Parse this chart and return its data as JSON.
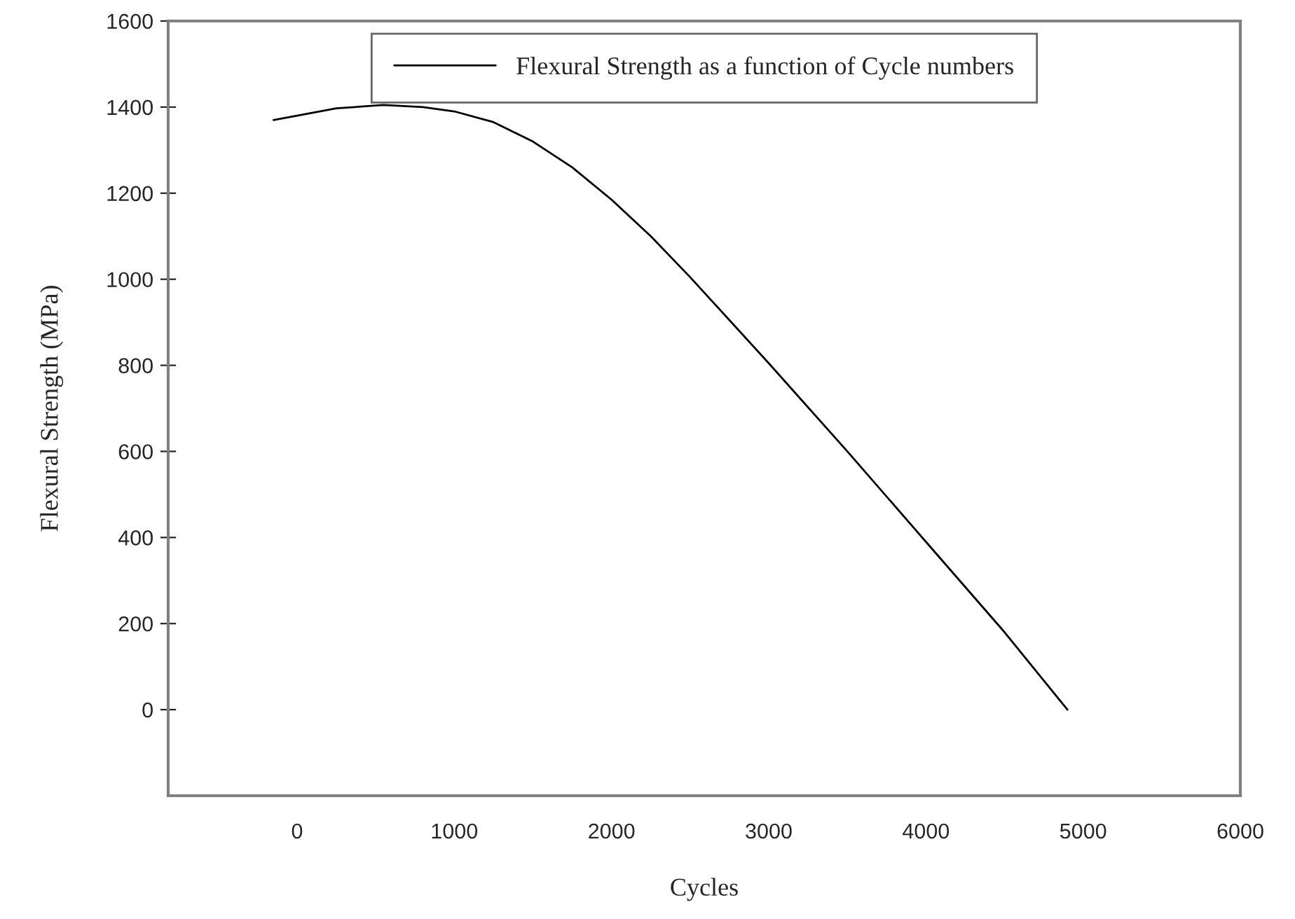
{
  "chart_data": {
    "type": "line",
    "xlabel": "Cycles",
    "ylabel": "Flexural Strength (MPa)",
    "x": [
      -150,
      0,
      250,
      550,
      800,
      1000,
      1250,
      1500,
      1750,
      2000,
      2250,
      2500,
      2750,
      3000,
      3500,
      4000,
      4500,
      4900
    ],
    "series": [
      {
        "name": "Flexural Strength as a function of Cycle numbers",
        "color": "#000000",
        "values": [
          1370,
          1380,
          1397,
          1405,
          1400,
          1390,
          1365,
          1320,
          1260,
          1185,
          1100,
          1005,
          905,
          805,
          600,
          390,
          180,
          0
        ]
      }
    ],
    "xlim": [
      -820,
      6000
    ],
    "xticks": [
      0,
      1000,
      2000,
      3000,
      4000,
      5000,
      6000
    ],
    "ylim": [
      -200,
      1600
    ],
    "yticks": [
      0,
      200,
      400,
      600,
      800,
      1000,
      1200,
      1400,
      1600
    ],
    "grid": false,
    "legend": "top",
    "marker": "none",
    "line_style": "solid"
  }
}
